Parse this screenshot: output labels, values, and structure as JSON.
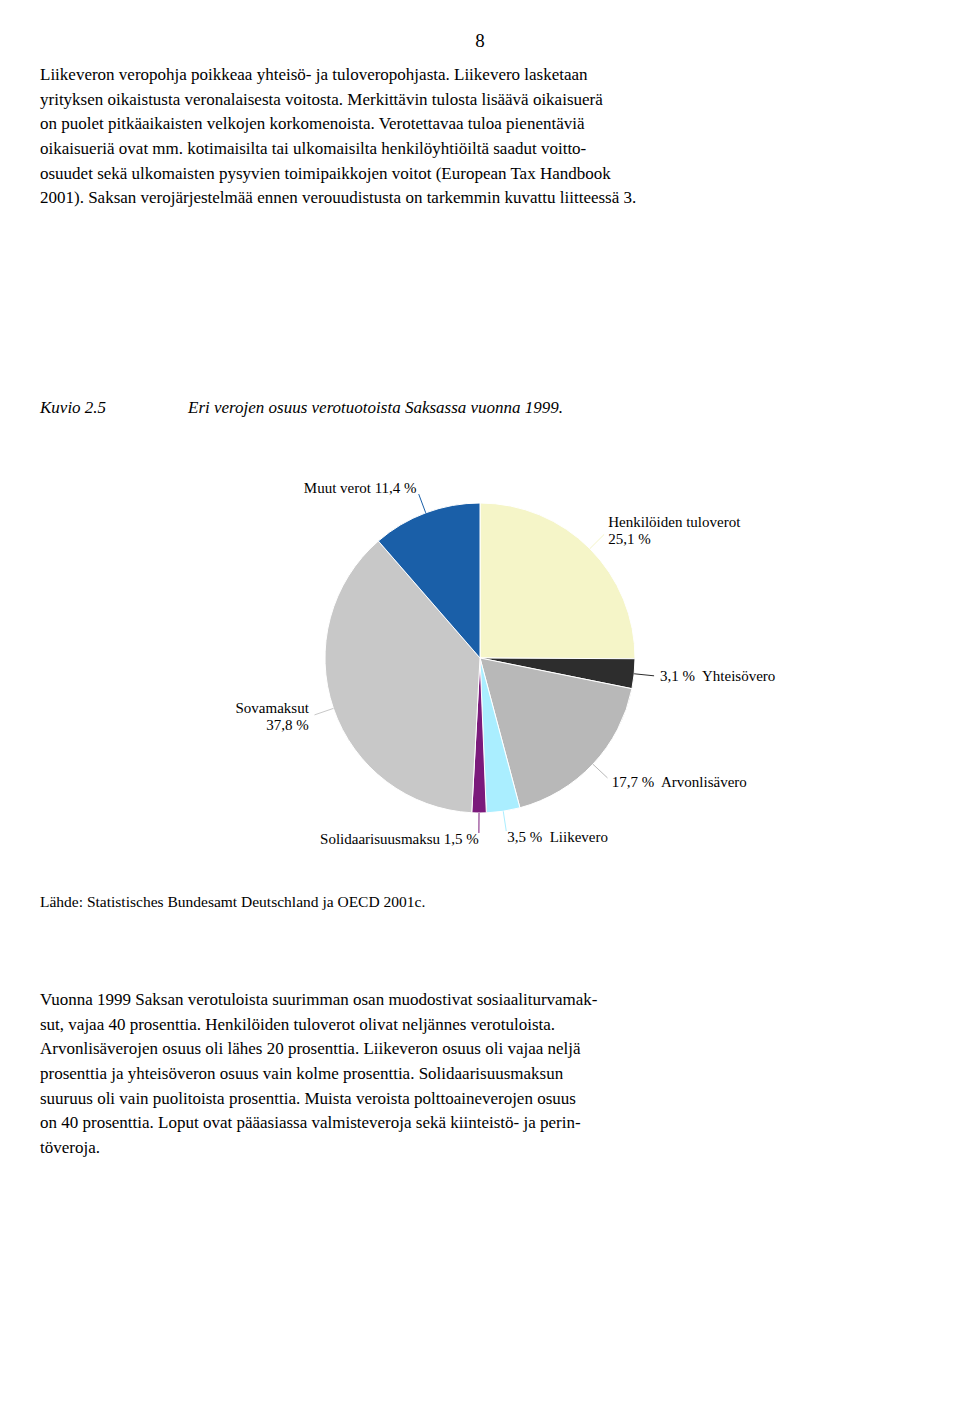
{
  "chart_data": {
    "type": "pie",
    "title": "Eri verojen osuus verotuotoista Saksassa vuonna 1999.",
    "categories": [
      "Henkilöiden tuloverot\n25,1 %",
      "3,1 %  Yhteisövero",
      "17,7 %  Arvonlisävero",
      "3,5 %  Liikevero",
      "Solidaarisuusmaksu 1,5 %",
      "Sovamaksut\n37,8 %",
      "Muut verot 11,4 %"
    ],
    "values": [
      25.1,
      3.1,
      17.7,
      3.5,
      1.5,
      37.8,
      11.4
    ],
    "colors": [
      "#f5f5c8",
      "#2d2d2d",
      "#b8b8b8",
      "#aaeeff",
      "#7b1a7b",
      "#c8c8c8",
      "#1a5fa8"
    ],
    "annotations": [
      "8",
      "Liikeveron veropohja poikkeaa yhteisö- ja tuloveropohjasta. Liikevero lasketaan\nyrityksen oikaistusta veronalaisesta voitosta. Merkittävin tulosta lisäävä oikaisuerä\non puolet pitkäaikaisten velkojen korkomenoista. Verotettavaa tuloa pienentäviä\noikaisueriä ovat mm. kotimaisilta tai ulkomaisilta henkilöyhtiöiltä saadut voitto-\nosuudet sekä ulkomaisten pysyvien toimipaikkojen voitot (European Tax Handbook\n2001). Saksan verojärjestelmää ennen verouudistusta on tarkemmin kuvattu liitteessä 3.",
      "Kuvio 2.5",
      "Lähde: Statistisches Bundesamt Deutschland ja OECD 2001c.",
      "Vuonna 1999 Saksan verotuloista suurimman osan muodostivat sosiaaliturvamak-\nsut, vajaa 40 prosenttia. Henkilöiden tuloverot olivat neljännes verotuloista.\nArvonlisäverojen osuus oli lähes 20 prosenttia. Liikeveron osuus oli vajaa neljä\nprosenttia ja yhteisöveron osuus vain kolme prosenttia. Solidaarisuusmaksun\nsuuruus oli vain puolitoista prosenttia. Muista veroista polttoaineverojen osuus\non 40 prosenttia. Loput ovat pääasiassa valmisteveroja sekä kiinteistö- ja perin-\ntöveroja."
    ]
  }
}
